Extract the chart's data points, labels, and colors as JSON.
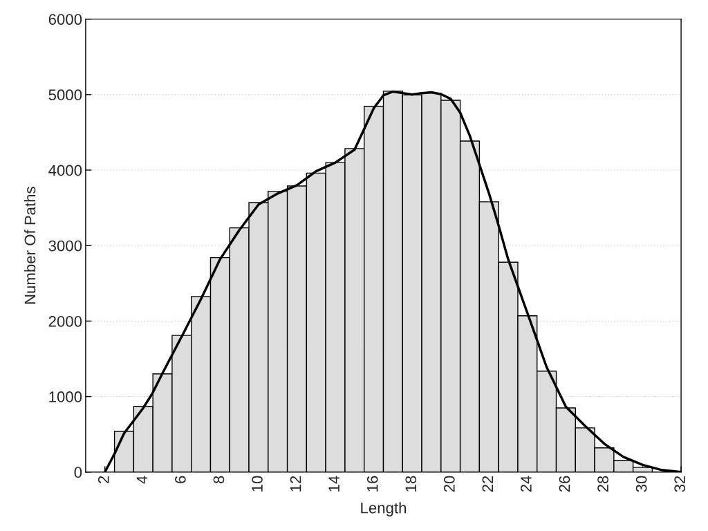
{
  "chart_data": {
    "type": "histogram",
    "xlabel": "Length",
    "ylabel": "Number Of Paths",
    "bins": [
      2.5,
      3.5,
      4.5,
      5.5,
      6.5,
      7.5,
      8.5,
      9.5,
      10.5,
      11.5,
      12.5,
      13.5,
      14.5,
      15.5,
      16.5,
      17.5,
      18.5,
      19.5,
      20.5,
      21.5,
      22.5,
      23.5,
      24.5,
      25.5,
      26.5,
      27.5,
      28.5,
      29.5,
      30.5
    ],
    "values": [
      540,
      870,
      1300,
      1810,
      2325,
      2840,
      3235,
      3570,
      3720,
      3790,
      3960,
      4100,
      4285,
      4845,
      5045,
      4995,
      5020,
      4925,
      4385,
      3580,
      2780,
      2070,
      1337,
      850,
      585,
      320,
      153,
      61
    ],
    "color": "#dddddd",
    "series": [
      {
        "type": "line",
        "color": "#000000",
        "x": [
          2,
          2.53,
          3,
          4,
          4.46,
          5,
          6,
          7,
          8,
          9,
          10,
          11,
          12,
          13,
          14,
          15,
          15.5,
          16,
          16.5,
          17,
          17.5,
          18,
          18.5,
          19,
          19.5,
          20,
          20.5,
          21,
          22,
          22.5,
          23,
          24,
          25,
          26,
          27,
          28,
          29,
          30,
          31,
          32
        ],
        "values": [
          0,
          256,
          513,
          850,
          1035,
          1310,
          1795,
          2290,
          2820,
          3205,
          3545,
          3690,
          3800,
          3985,
          4100,
          4270,
          4545,
          4820,
          4990,
          5040,
          5020,
          5000,
          5020,
          5030,
          5005,
          4945,
          4760,
          4455,
          3690,
          3265,
          2815,
          2105,
          1390,
          865,
          612,
          375,
          200,
          95,
          27,
          0
        ]
      }
    ],
    "xlim": [
      1,
      32
    ],
    "xticks": [
      2,
      4,
      6,
      8,
      10,
      12,
      14,
      16,
      18,
      20,
      22,
      24,
      26,
      28,
      30,
      32
    ],
    "ylim": [
      0,
      6000
    ],
    "yticks": [
      0,
      1000,
      2000,
      3000,
      4000,
      5000,
      6000
    ],
    "grid": "y",
    "legend": false
  }
}
